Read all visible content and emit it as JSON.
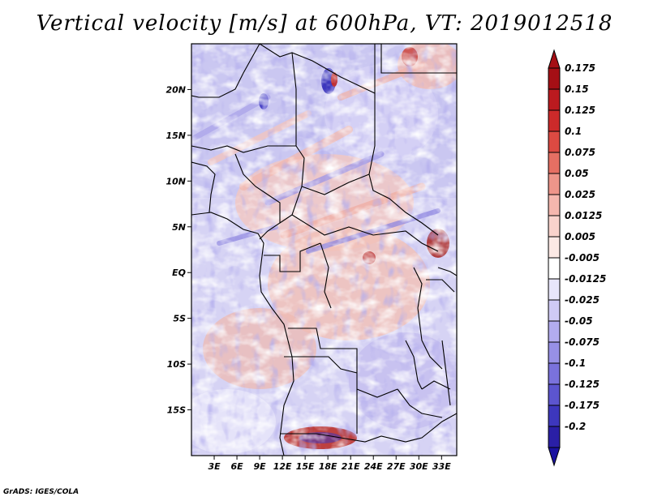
{
  "title": "Vertical velocity [m/s] at 600hPa, VT: 2019012518",
  "credit": "GrADS: IGES/COLA",
  "map": {
    "lat_labels": [
      {
        "lat": 20,
        "text": "20N"
      },
      {
        "lat": 15,
        "text": "15N"
      },
      {
        "lat": 10,
        "text": "10N"
      },
      {
        "lat": 5,
        "text": "5N"
      },
      {
        "lat": 0,
        "text": "EQ"
      },
      {
        "lat": -5,
        "text": "5S"
      },
      {
        "lat": -10,
        "text": "10S"
      },
      {
        "lat": -15,
        "text": "15S"
      }
    ],
    "lon_labels": [
      {
        "lon": 3,
        "text": "3E"
      },
      {
        "lon": 6,
        "text": "6E"
      },
      {
        "lon": 9,
        "text": "9E"
      },
      {
        "lon": 12,
        "text": "12E"
      },
      {
        "lon": 15,
        "text": "15E"
      },
      {
        "lon": 18,
        "text": "18E"
      },
      {
        "lon": 21,
        "text": "21E"
      },
      {
        "lon": 24,
        "text": "24E"
      },
      {
        "lon": 27,
        "text": "27E"
      },
      {
        "lon": 30,
        "text": "30E"
      },
      {
        "lon": 33,
        "text": "33E"
      }
    ],
    "lon_range": [
      0,
      35
    ],
    "lat_range": [
      -20,
      25
    ]
  },
  "colorbar": {
    "levels": [
      {
        "label": "0.175",
        "color": "#a50f15"
      },
      {
        "label": "0.15",
        "color": "#bb1a1f"
      },
      {
        "label": "0.125",
        "color": "#cc2a2a"
      },
      {
        "label": "0.1",
        "color": "#dc4a42"
      },
      {
        "label": "0.075",
        "color": "#e66f63"
      },
      {
        "label": "0.05",
        "color": "#ee958a"
      },
      {
        "label": "0.025",
        "color": "#f5b7ae"
      },
      {
        "label": "0.0125",
        "color": "#f9d3cc"
      },
      {
        "label": "0.005",
        "color": "#fce9e5"
      },
      {
        "label": "-0.005",
        "color": "#ffffff"
      },
      {
        "label": "-0.0125",
        "color": "#e8e6fb"
      },
      {
        "label": "-0.025",
        "color": "#cfcaf5"
      },
      {
        "label": "-0.05",
        "color": "#b3acef"
      },
      {
        "label": "-0.075",
        "color": "#9790e6"
      },
      {
        "label": "-0.1",
        "color": "#7a72dc"
      },
      {
        "label": "-0.125",
        "color": "#5c55cf"
      },
      {
        "label": "-0.175",
        "color": "#3d37bd"
      },
      {
        "label": "-0.2",
        "color": "#2a1fa6"
      }
    ],
    "top_color": "#a50f15",
    "bottom_color": "#1a12a0"
  }
}
